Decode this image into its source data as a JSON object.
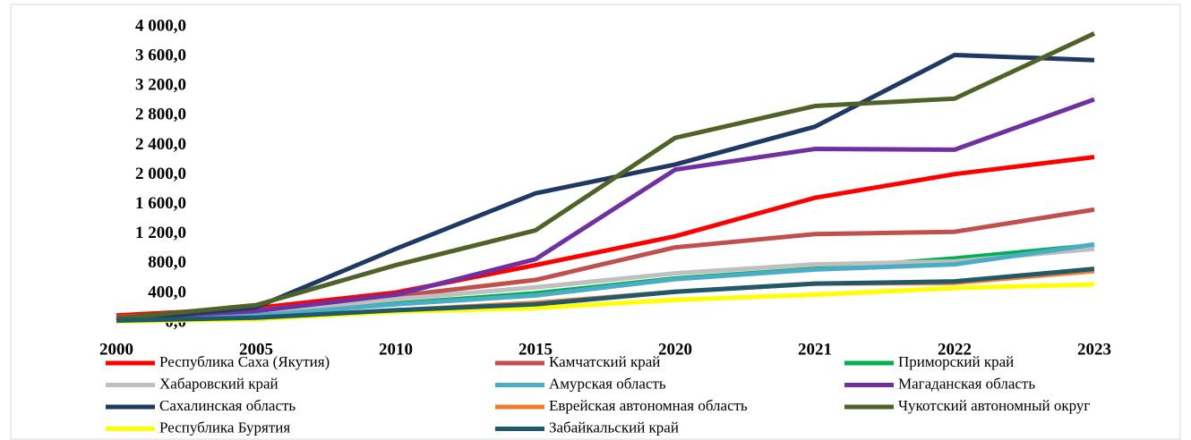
{
  "chart_data": {
    "type": "line",
    "categories": [
      "2000",
      "2005",
      "2010",
      "2015",
      "2020",
      "2021",
      "2022",
      "2023"
    ],
    "ylim": [
      0,
      4000
    ],
    "yticks": [
      {
        "value": 0,
        "label": "0,0"
      },
      {
        "value": 400,
        "label": "400,0"
      },
      {
        "value": 800,
        "label": "800,0"
      },
      {
        "value": 1200,
        "label": "1 200,0"
      },
      {
        "value": 1600,
        "label": "1 600,0"
      },
      {
        "value": 2000,
        "label": "2 000,0"
      },
      {
        "value": 2400,
        "label": "2 400,0"
      },
      {
        "value": 2800,
        "label": "2 800,0"
      },
      {
        "value": 3200,
        "label": "3 200,0"
      },
      {
        "value": 3600,
        "label": "3 600,0"
      },
      {
        "value": 4000,
        "label": "4 000,0"
      }
    ],
    "series": [
      {
        "name": "Республика Саха (Якутия)",
        "color": "#ff0000",
        "values": [
          100,
          200,
          410,
          780,
          1170,
          1690,
          2010,
          2240
        ]
      },
      {
        "name": "Камчатский край",
        "color": "#c0504d",
        "values": [
          80,
          170,
          360,
          580,
          1020,
          1200,
          1230,
          1530
        ]
      },
      {
        "name": "Приморский край",
        "color": "#00b050",
        "values": [
          40,
          110,
          260,
          400,
          600,
          730,
          870,
          1050
        ]
      },
      {
        "name": "Хабаровский край",
        "color": "#bfbfbf",
        "values": [
          50,
          140,
          320,
          480,
          670,
          790,
          830,
          1000
        ]
      },
      {
        "name": "Амурская область",
        "color": "#4bacc6",
        "values": [
          40,
          100,
          250,
          370,
          590,
          720,
          790,
          1060
        ]
      },
      {
        "name": "Магаданская область",
        "color": "#7030a0",
        "values": [
          60,
          160,
          380,
          860,
          2070,
          2350,
          2340,
          3020
        ]
      },
      {
        "name": "Сахалинская область",
        "color": "#1f3864",
        "values": [
          30,
          210,
          1000,
          1750,
          2140,
          2650,
          3620,
          3550
        ]
      },
      {
        "name": "Еврейская автономная область",
        "color": "#ed7d31",
        "values": [
          30,
          60,
          170,
          270,
          420,
          530,
          540,
          700
        ]
      },
      {
        "name": "Чукотский автономный округ",
        "color": "#4f6228",
        "values": [
          60,
          240,
          780,
          1250,
          2500,
          2930,
          3030,
          3910
        ]
      },
      {
        "name": "Республика Бурятия",
        "color": "#ffff00",
        "values": [
          20,
          50,
          150,
          200,
          310,
          380,
          470,
          520
        ]
      },
      {
        "name": "Забайкальский край",
        "color": "#215968",
        "values": [
          30,
          70,
          170,
          250,
          420,
          530,
          560,
          730
        ]
      }
    ]
  }
}
